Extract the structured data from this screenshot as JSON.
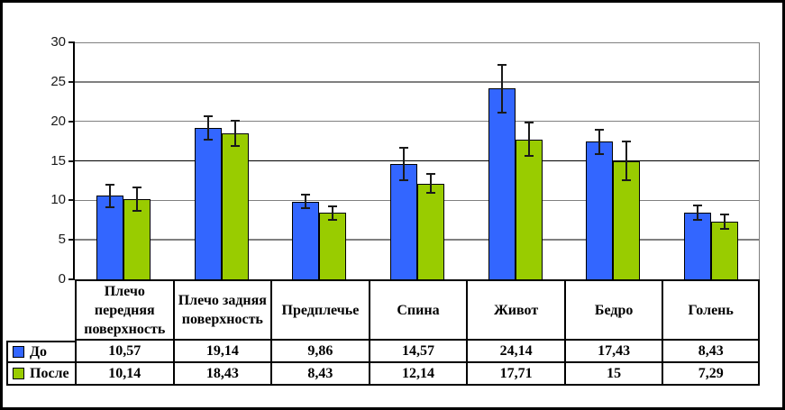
{
  "figure": {
    "background": "#ffffff",
    "border_color": "#000000"
  },
  "chart_data": {
    "type": "bar",
    "title": "",
    "xlabel": "",
    "ylabel": "",
    "categories": [
      "Плечо передняя поверхность",
      "Плечо задняя поверхность",
      "Предплечье",
      "Спина",
      "Живот",
      "Бедро",
      "Голень"
    ],
    "series": [
      {
        "name": "До",
        "color": "#3366FF",
        "values": [
          10.57,
          19.14,
          9.86,
          14.57,
          24.14,
          17.43,
          8.43
        ],
        "value_labels": [
          "10,57",
          "19,14",
          "9,86",
          "14,57",
          "24,14",
          "17,43",
          "8,43"
        ],
        "errors": [
          1.45,
          1.5,
          0.85,
          2.05,
          3.0,
          1.55,
          0.9
        ]
      },
      {
        "name": "После",
        "color": "#99CC00",
        "values": [
          10.14,
          18.43,
          8.43,
          12.14,
          17.71,
          15,
          7.29
        ],
        "value_labels": [
          "10,14",
          "18,43",
          "8,43",
          "12,14",
          "17,71",
          "15",
          "7,29"
        ],
        "errors": [
          1.45,
          1.6,
          0.85,
          1.15,
          2.1,
          2.4,
          0.9
        ]
      }
    ],
    "ylim": [
      0,
      30
    ],
    "ytick_step": 5,
    "ytick_labels": [
      "30",
      "25",
      "20",
      "15",
      "10",
      "5",
      "0"
    ],
    "grid": true,
    "error_bars": true,
    "data_table": true,
    "legend_position": "left-of-data-table",
    "colors": {
      "grid": "#808080",
      "grid_emphasis": "#000000",
      "axis": "#000000",
      "table_border": "#000000",
      "bar_border": "#000000"
    }
  }
}
